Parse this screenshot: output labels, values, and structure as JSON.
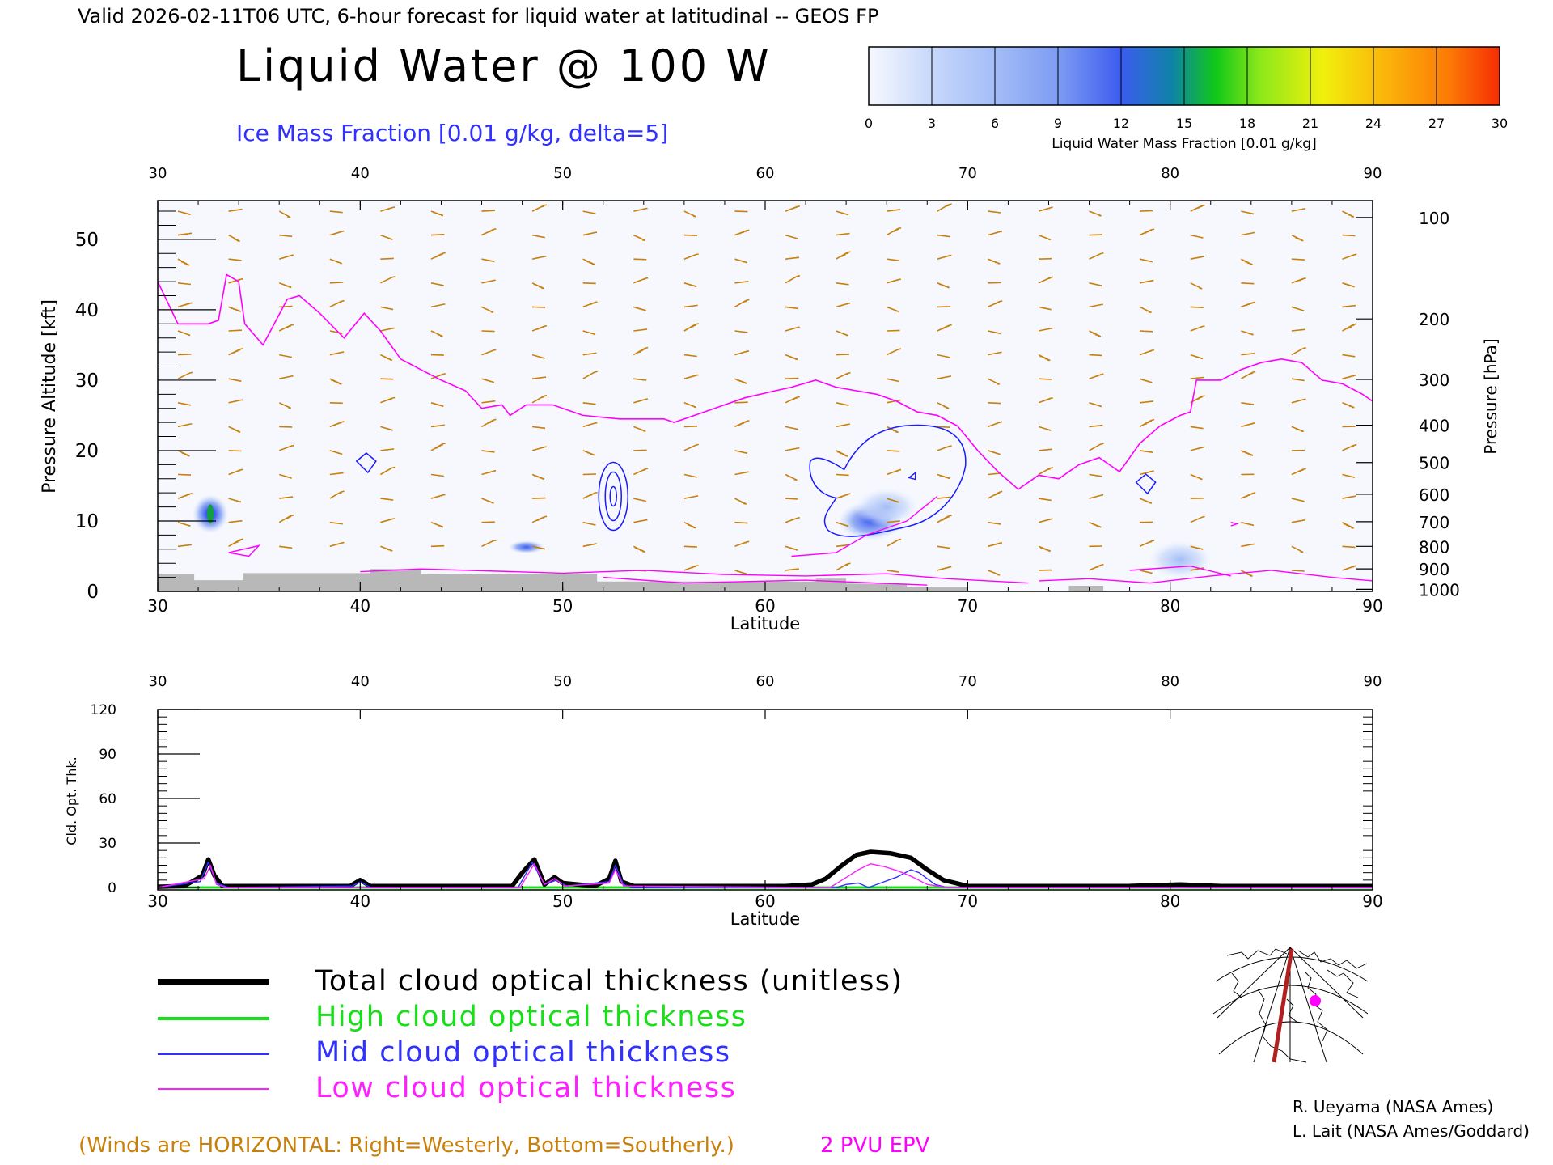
{
  "header": {
    "valid_line": "Valid 2026-02-11T06 UTC, 6-hour forecast for liquid water at latitudinal -- GEOS FP",
    "title": "Liquid Water @ 100 W",
    "subtitle": "Ice Mass Fraction [0.01 g/kg, delta=5]"
  },
  "colorbar": {
    "ticks": [
      "0",
      "3",
      "6",
      "9",
      "12",
      "15",
      "18",
      "21",
      "24",
      "27",
      "30"
    ],
    "label": "Liquid Water Mass Fraction [0.01 g/kg]",
    "colors": [
      "#f6f8fe",
      "#c8d8fb",
      "#a4bdf7",
      "#7e9cf2",
      "#3c5cf0",
      "#0f82a8",
      "#10c818",
      "#8ce81a",
      "#f0f00c",
      "#fbb40a",
      "#fc7a06",
      "#f52d02"
    ]
  },
  "legend": {
    "items": [
      {
        "label": "Total cloud optical thickness (unitless)",
        "color": "#000000"
      },
      {
        "label": "High cloud optical thickness",
        "color": "#18e018"
      },
      {
        "label": "Mid cloud optical thickness",
        "color": "#3030ff"
      },
      {
        "label": "Low cloud optical thickness",
        "color": "#ff20ff"
      }
    ]
  },
  "footer": {
    "winds_note": "(Winds are HORIZONTAL: Right=Westerly, Bottom=Southerly.)",
    "pvu_label": "2 PVU EPV",
    "credit_1": "R. Ueyama (NASA Ames)",
    "credit_2": "L. Lait (NASA Ames/Goddard)"
  },
  "colors": {
    "wind": "#c8800c",
    "pvu": "#ff00ff",
    "ice_contour": "#1a1aff",
    "terrain": "#b8b8b8",
    "title_blue": "#3030ff"
  },
  "chart_data": [
    {
      "type": "heatmap",
      "name": "cross-section",
      "x_top_ticks": [
        "30",
        "40",
        "50",
        "60",
        "70",
        "80",
        "90"
      ],
      "x_bottom_ticks": [
        "30",
        "40",
        "50",
        "60",
        "70",
        "80",
        "90"
      ],
      "xlabel": "Latitude",
      "xlim": [
        30,
        90
      ],
      "ylabel_left": "Pressure Altitude [kft]",
      "y_left_ticks": [
        "0",
        "10",
        "20",
        "30",
        "40",
        "50"
      ],
      "ylim": [
        0,
        55.5
      ],
      "ylabel_right": "Pressure [hPa]",
      "y_right_ticks": [
        {
          "label": "100",
          "kft": 53.1
        },
        {
          "label": "200",
          "kft": 38.7
        },
        {
          "label": "300",
          "kft": 30.1
        },
        {
          "label": "400",
          "kft": 23.6
        },
        {
          "label": "500",
          "kft": 18.3
        },
        {
          "label": "600",
          "kft": 13.8
        },
        {
          "label": "700",
          "kft": 9.9
        },
        {
          "label": "800",
          "kft": 6.4
        },
        {
          "label": "900",
          "kft": 3.2
        },
        {
          "label": "1000",
          "kft": 0.3
        }
      ],
      "liquid_water_blobs": [
        {
          "lat": 32.6,
          "alt": 11.0,
          "peak": 14
        },
        {
          "lat": 48.2,
          "alt": 6.3,
          "peak": 10
        },
        {
          "lat": 65.2,
          "alt": 10.0,
          "peak": 7
        },
        {
          "lat": 66.0,
          "alt": 12.0,
          "peak": 5
        },
        {
          "lat": 80.5,
          "alt": 4.5,
          "peak": 2
        }
      ],
      "pvu_2_line": [
        [
          30.0,
          44
        ],
        [
          31.0,
          38
        ],
        [
          32.5,
          38
        ],
        [
          33.0,
          38.5
        ],
        [
          33.4,
          45
        ],
        [
          34.0,
          44
        ],
        [
          34.3,
          38
        ],
        [
          35.2,
          35
        ],
        [
          36.4,
          41.5
        ],
        [
          37.0,
          42
        ],
        [
          38.0,
          39.5
        ],
        [
          39.2,
          36
        ],
        [
          40.2,
          39.5
        ],
        [
          41.0,
          37
        ],
        [
          42.0,
          33
        ],
        [
          43.0,
          31.5
        ],
        [
          44.0,
          30
        ],
        [
          45.2,
          28.5
        ],
        [
          46.0,
          26
        ],
        [
          47.0,
          26.5
        ],
        [
          47.4,
          25
        ],
        [
          48.2,
          26.5
        ],
        [
          49.5,
          26.5
        ],
        [
          51.0,
          25
        ],
        [
          52.8,
          24.5
        ],
        [
          54.0,
          24.5
        ],
        [
          55.0,
          24.5
        ],
        [
          55.5,
          24
        ],
        [
          57.0,
          25.5
        ],
        [
          58.0,
          26.5
        ],
        [
          59.0,
          27.5
        ],
        [
          60.5,
          28.5
        ],
        [
          61.3,
          29
        ],
        [
          62.5,
          30
        ],
        [
          63.5,
          29
        ],
        [
          64.5,
          28.5
        ],
        [
          65.5,
          28
        ],
        [
          66.5,
          27
        ],
        [
          67.5,
          25.5
        ],
        [
          68.5,
          25
        ],
        [
          69.5,
          23.5
        ],
        [
          70.5,
          20
        ],
        [
          71.5,
          17
        ],
        [
          72.5,
          14.5
        ],
        [
          73.5,
          16.5
        ],
        [
          74.5,
          16
        ],
        [
          75.5,
          18
        ],
        [
          76.5,
          19
        ],
        [
          77.5,
          17
        ],
        [
          78.5,
          21
        ],
        [
          79.5,
          23.5
        ],
        [
          80.5,
          25
        ],
        [
          81.0,
          25.5
        ],
        [
          81.3,
          30
        ],
        [
          82.5,
          30
        ],
        [
          83.5,
          31.5
        ],
        [
          84.5,
          32.5
        ],
        [
          85.5,
          33
        ],
        [
          86.5,
          32.5
        ],
        [
          87.5,
          30
        ],
        [
          88.5,
          29.5
        ],
        [
          89.5,
          28
        ],
        [
          90.0,
          27
        ]
      ],
      "ice_contours": [
        {
          "lat": 40.3,
          "alt": 18.5
        },
        {
          "lat": 52.5,
          "alt": 13.5
        },
        {
          "lat": 65.5,
          "alt": 15.0
        },
        {
          "lat": 78.8,
          "alt": 15.5
        }
      ],
      "terrain": [
        [
          30,
          2.5
        ],
        [
          31.8,
          2.5
        ],
        [
          31.8,
          1.6
        ],
        [
          34.2,
          1.6
        ],
        [
          34.2,
          2.6
        ],
        [
          40.5,
          2.6
        ],
        [
          40.5,
          3.2
        ],
        [
          43.0,
          3.2
        ],
        [
          43.0,
          2.5
        ],
        [
          51.7,
          2.5
        ],
        [
          51.7,
          1.4
        ],
        [
          62.5,
          1.4
        ],
        [
          62.5,
          1.8
        ],
        [
          64.0,
          1.8
        ],
        [
          64.0,
          1.1
        ],
        [
          67.0,
          1.1
        ],
        [
          67.0,
          0.6
        ],
        [
          70.0,
          0.6
        ],
        [
          70.0,
          0
        ],
        [
          75.0,
          0
        ],
        [
          75.0,
          0.8
        ],
        [
          76.7,
          0.8
        ],
        [
          76.7,
          0
        ],
        [
          90,
          0
        ]
      ]
    },
    {
      "type": "line",
      "name": "cloud-optical-thickness",
      "ylabel": "Cld. Opt. Thk.",
      "y_ticks": [
        "0",
        "30",
        "60",
        "90",
        "120"
      ],
      "ylim": [
        0,
        120
      ],
      "xlim": [
        30,
        90
      ],
      "x_top_ticks": [
        "30",
        "40",
        "50",
        "60",
        "70",
        "80",
        "90"
      ],
      "x_bottom_ticks": [
        "30",
        "40",
        "50",
        "60",
        "70",
        "80",
        "90"
      ],
      "xlabel": "Latitude",
      "series": [
        {
          "name": "Total cloud optical thickness (unitless)",
          "points": [
            [
              30,
              0.5
            ],
            [
              31.3,
              1
            ],
            [
              31.7,
              4
            ],
            [
              32.2,
              8
            ],
            [
              32.5,
              19
            ],
            [
              32.8,
              8
            ],
            [
              33.2,
              1
            ],
            [
              39.5,
              1
            ],
            [
              40.0,
              5
            ],
            [
              40.5,
              1
            ],
            [
              47.5,
              1
            ],
            [
              48.0,
              10
            ],
            [
              48.6,
              19
            ],
            [
              49.1,
              2
            ],
            [
              49.6,
              7
            ],
            [
              50.0,
              3
            ],
            [
              51.6,
              1
            ],
            [
              52.3,
              6
            ],
            [
              52.6,
              18
            ],
            [
              52.9,
              4
            ],
            [
              53.5,
              1
            ],
            [
              61.0,
              1
            ],
            [
              62.3,
              2
            ],
            [
              63.0,
              6
            ],
            [
              63.8,
              15
            ],
            [
              64.5,
              22
            ],
            [
              65.2,
              24
            ],
            [
              66.2,
              23
            ],
            [
              67.2,
              20
            ],
            [
              68.0,
              12
            ],
            [
              68.8,
              5
            ],
            [
              70.0,
              1
            ],
            [
              78.0,
              1
            ],
            [
              80.5,
              2
            ],
            [
              82.5,
              1
            ],
            [
              86.0,
              1
            ],
            [
              88.0,
              1
            ],
            [
              90,
              1
            ]
          ]
        },
        {
          "name": "High cloud optical thickness",
          "points": [
            [
              30,
              0
            ],
            [
              90,
              0
            ]
          ]
        },
        {
          "name": "Mid cloud optical thickness",
          "points": [
            [
              30,
              0
            ],
            [
              32.1,
              4
            ],
            [
              32.5,
              17
            ],
            [
              32.9,
              3
            ],
            [
              33.5,
              0
            ],
            [
              39.6,
              1
            ],
            [
              40.0,
              4
            ],
            [
              40.5,
              0
            ],
            [
              47.8,
              0
            ],
            [
              48.5,
              17
            ],
            [
              49.1,
              2
            ],
            [
              49.7,
              5
            ],
            [
              50.2,
              1
            ],
            [
              52.3,
              4
            ],
            [
              52.6,
              15
            ],
            [
              53.0,
              2
            ],
            [
              53.5,
              0
            ],
            [
              63.5,
              0
            ],
            [
              64.0,
              2
            ],
            [
              64.6,
              3
            ],
            [
              65.1,
              0
            ],
            [
              65.7,
              3
            ],
            [
              66.5,
              7
            ],
            [
              67.2,
              12
            ],
            [
              67.6,
              10
            ],
            [
              68.4,
              2
            ],
            [
              69.0,
              0
            ],
            [
              90,
              0
            ]
          ]
        },
        {
          "name": "Low cloud optical thickness",
          "points": [
            [
              30,
              0
            ],
            [
              32.3,
              6
            ],
            [
              32.6,
              15
            ],
            [
              32.9,
              2
            ],
            [
              33.4,
              0
            ],
            [
              47.9,
              0
            ],
            [
              48.6,
              16
            ],
            [
              49.1,
              2
            ],
            [
              49.6,
              6
            ],
            [
              50.1,
              1
            ],
            [
              52.3,
              3
            ],
            [
              52.6,
              12
            ],
            [
              53.0,
              1
            ],
            [
              63.2,
              0
            ],
            [
              63.8,
              5
            ],
            [
              64.6,
              12
            ],
            [
              65.2,
              16
            ],
            [
              65.9,
              14
            ],
            [
              66.6,
              11
            ],
            [
              67.3,
              7
            ],
            [
              68.0,
              2
            ],
            [
              69.0,
              0
            ],
            [
              90,
              0
            ]
          ]
        }
      ]
    }
  ]
}
